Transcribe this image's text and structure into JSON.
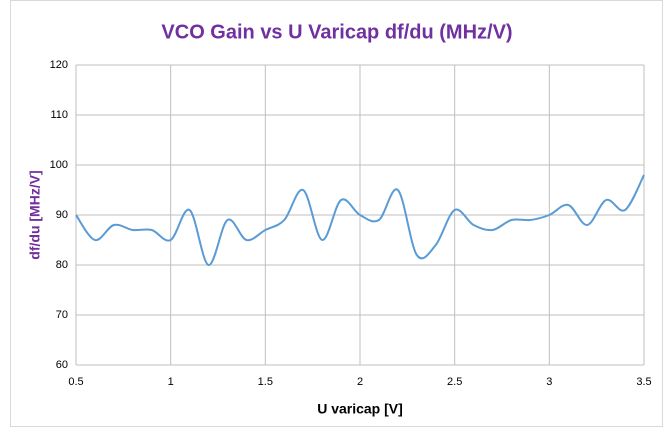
{
  "chart_data": {
    "type": "line",
    "title": "VCO Gain vs U Varicap  df/du (MHz/V)",
    "xlabel": "U varicap [V]",
    "ylabel": "df/du [MHz/V]",
    "x": [
      0.5,
      0.6,
      0.7,
      0.8,
      0.9,
      1.0,
      1.1,
      1.2,
      1.3,
      1.4,
      1.5,
      1.6,
      1.7,
      1.8,
      1.9,
      2.0,
      2.1,
      2.2,
      2.3,
      2.4,
      2.5,
      2.6,
      2.7,
      2.8,
      2.9,
      3.0,
      3.1,
      3.2,
      3.3,
      3.4,
      3.5
    ],
    "series": [
      {
        "color": "#5b9bd5",
        "values": [
          90,
          85,
          88,
          87,
          87,
          85,
          91,
          80,
          89,
          85,
          87,
          89,
          95,
          85,
          93,
          90,
          89,
          95,
          82,
          84,
          91,
          88,
          87,
          89,
          89,
          90,
          92,
          88,
          93,
          91,
          98
        ]
      }
    ],
    "xlim": [
      0.5,
      3.5
    ],
    "xticks": [
      0.5,
      1,
      1.5,
      2,
      2.5,
      3,
      3.5
    ],
    "ylim": [
      60,
      120
    ],
    "yticks": [
      60,
      70,
      80,
      90,
      100,
      110,
      120
    ],
    "grid": true,
    "smooth": true
  }
}
